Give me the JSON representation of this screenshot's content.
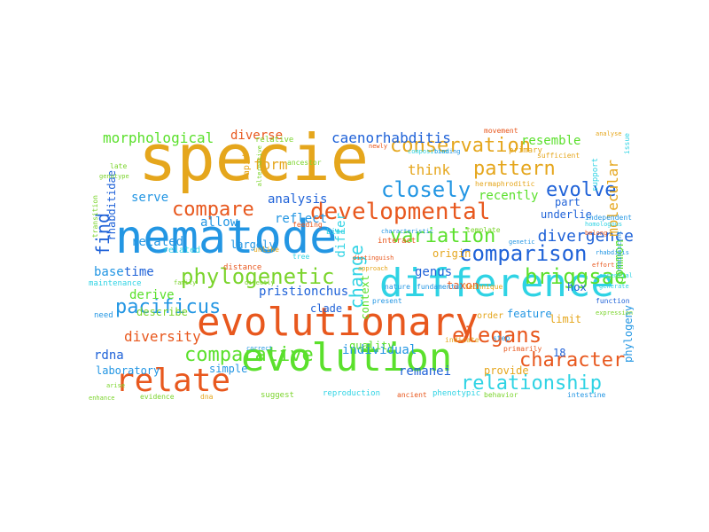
{
  "words": [
    {
      "text": "specie",
      "color": "#E5A61C"
    },
    {
      "text": "nematode",
      "color": "#2396E3"
    },
    {
      "text": "evolutionary",
      "color": "#E8581E"
    },
    {
      "text": "difference",
      "color": "#2FD3E4"
    },
    {
      "text": "evolution",
      "color": "#5BE02C"
    },
    {
      "text": "relate",
      "color": "#E8581E"
    },
    {
      "text": "developmental",
      "color": "#E8581E"
    },
    {
      "text": "comparison",
      "color": "#1F62D8"
    },
    {
      "text": "conservation",
      "color": "#E5A61C"
    },
    {
      "text": "closely",
      "color": "#2396E3"
    },
    {
      "text": "phylogenetic",
      "color": "#7BD42C"
    },
    {
      "text": "pacificus",
      "color": "#2396E3"
    },
    {
      "text": "variation",
      "color": "#5BE02C"
    },
    {
      "text": "briggsae",
      "color": "#5BE02C"
    },
    {
      "text": "relationship",
      "color": "#2FD3E4"
    },
    {
      "text": "elegans",
      "color": "#E8581E"
    },
    {
      "text": "comparative",
      "color": "#5BE02C"
    },
    {
      "text": "pattern",
      "color": "#E5A61C"
    },
    {
      "text": "compare",
      "color": "#E8581E"
    },
    {
      "text": "evolve",
      "color": "#1F62D8"
    },
    {
      "text": "find",
      "color": "#1F62D8"
    },
    {
      "text": "character",
      "color": "#E8581E"
    },
    {
      "text": "change",
      "color": "#2FD3E4"
    },
    {
      "text": "morphological",
      "color": "#5BE02C"
    },
    {
      "text": "caenorhabditis",
      "color": "#1F62D8"
    },
    {
      "text": "divergence",
      "color": "#1F62D8"
    },
    {
      "text": "think",
      "color": "#E5A61C"
    },
    {
      "text": "diversity",
      "color": "#E8581E"
    },
    {
      "text": "molecular",
      "color": "#E5A61C"
    },
    {
      "text": "form",
      "color": "#E5A61C"
    },
    {
      "text": "diverse",
      "color": "#E8581E"
    },
    {
      "text": "analysis",
      "color": "#1F62D8"
    },
    {
      "text": "recently",
      "color": "#5BE02C"
    },
    {
      "text": "resemble",
      "color": "#5BE02C"
    },
    {
      "text": "pristionchus",
      "color": "#1F62D8"
    },
    {
      "text": "individual",
      "color": "#2396E3"
    },
    {
      "text": "remanei",
      "color": "#1F62D8"
    },
    {
      "text": "genus",
      "color": "#1F62D8"
    },
    {
      "text": "common",
      "color": "#5BE02C"
    },
    {
      "text": "rdna",
      "color": "#1F62D8"
    },
    {
      "text": "serve",
      "color": "#2396E3"
    },
    {
      "text": "allow",
      "color": "#2396E3"
    },
    {
      "text": "reflect",
      "color": "#2396E3"
    },
    {
      "text": "related",
      "color": "#2396E3"
    },
    {
      "text": "derive",
      "color": "#5BE02C"
    },
    {
      "text": "base",
      "color": "#2396E3"
    },
    {
      "text": "time",
      "color": "#1F62D8"
    },
    {
      "text": "describe",
      "color": "#7BD42C"
    },
    {
      "text": "laboratory",
      "color": "#2396E3"
    },
    {
      "text": "simple",
      "color": "#2396E3"
    },
    {
      "text": "largely",
      "color": "#2396E3"
    },
    {
      "text": "origin",
      "color": "#E5A61C"
    },
    {
      "text": "context",
      "color": "#5BE02C"
    },
    {
      "text": "quality",
      "color": "#5BE02C"
    },
    {
      "text": "taxon",
      "color": "#E8581E"
    },
    {
      "text": "provide",
      "color": "#E5A61C"
    },
    {
      "text": "limit",
      "color": "#E5A61C"
    },
    {
      "text": "feature",
      "color": "#2396E3"
    },
    {
      "text": "hox",
      "color": "#1F62D8"
    },
    {
      "text": "part",
      "color": "#1F62D8"
    },
    {
      "text": "underlie",
      "color": "#1F62D8"
    },
    {
      "text": "phylogeny",
      "color": "#2396E3"
    },
    {
      "text": "18",
      "color": "#1F62D8"
    },
    {
      "text": "differ",
      "color": "#2FD3E4"
    },
    {
      "text": "rhabditidae",
      "color": "#1F62D8"
    },
    {
      "text": "clade",
      "color": "#1F62D8"
    },
    {
      "text": "order",
      "color": "#E5A61C"
    },
    {
      "text": "rapid",
      "color": "#E5A61C"
    },
    {
      "text": "related",
      "color": "#2FD3E4"
    },
    {
      "text": "relative",
      "color": "#7BD42C"
    },
    {
      "text": "distance",
      "color": "#E8581E"
    },
    {
      "text": "evolutionary",
      "color": "#E8581E"
    },
    {
      "text": "maintenance",
      "color": "#2FD3E4"
    },
    {
      "text": "need",
      "color": "#2396E3"
    },
    {
      "text": "late",
      "color": "#7BD42C"
    },
    {
      "text": "genotype",
      "color": "#7BD42C"
    },
    {
      "text": "transition",
      "color": "#7BD42C"
    },
    {
      "text": "primary",
      "color": "#E5A61C"
    },
    {
      "text": "movement",
      "color": "#E8581E"
    },
    {
      "text": "sufficient",
      "color": "#E5A61C"
    },
    {
      "text": "support",
      "color": "#2FD3E4"
    },
    {
      "text": "issue",
      "color": "#2FD3E4"
    },
    {
      "text": "ancestor",
      "color": "#7BD42C"
    },
    {
      "text": "feeding",
      "color": "#E8581E"
    },
    {
      "text": "unlike",
      "color": "#E5A61C"
    },
    {
      "text": "tree",
      "color": "#2FD3E4"
    },
    {
      "text": "bind",
      "color": "#2FD3E4"
    },
    {
      "text": "interact",
      "color": "#E8581E"
    },
    {
      "text": "template",
      "color": "#7BD42C"
    },
    {
      "text": "independent",
      "color": "#2396E3"
    },
    {
      "text": "hermaphroditic",
      "color": "#E5A61C"
    },
    {
      "text": "reproduction",
      "color": "#2FD3E4"
    },
    {
      "text": "phenotypic",
      "color": "#2FD3E4"
    },
    {
      "text": "suggest",
      "color": "#7BD42C"
    },
    {
      "text": "evidence",
      "color": "#7BD42C"
    },
    {
      "text": "dna",
      "color": "#E5A61C"
    },
    {
      "text": "ancient",
      "color": "#E8581E"
    },
    {
      "text": "behavior",
      "color": "#7BD42C"
    },
    {
      "text": "intestine",
      "color": "#2396E3"
    },
    {
      "text": "indicate",
      "color": "#E5A61C"
    },
    {
      "text": "nature",
      "color": "#2396E3"
    },
    {
      "text": "fundamental",
      "color": "#2396E3"
    },
    {
      "text": "technique",
      "color": "#E5A61C"
    },
    {
      "text": "step",
      "color": "#2396E3"
    },
    {
      "text": "function",
      "color": "#1F62D8"
    },
    {
      "text": "expression",
      "color": "#7BD42C"
    },
    {
      "text": "primarily",
      "color": "#E8581E"
    },
    {
      "text": "enhance",
      "color": "#7BD42C"
    },
    {
      "text": "correct",
      "color": "#2396E3"
    },
    {
      "text": "family",
      "color": "#7BD42C"
    },
    {
      "text": "directly",
      "color": "#7BD42C"
    },
    {
      "text": "present",
      "color": "#2396E3"
    },
    {
      "text": "distinguish",
      "color": "#E8581E"
    },
    {
      "text": "characteristic",
      "color": "#2396E3"
    },
    {
      "text": "composition",
      "color": "#2FD3E4"
    },
    {
      "text": "newly",
      "color": "#E8581E"
    },
    {
      "text": "binding",
      "color": "#2396E3"
    },
    {
      "text": "belong",
      "color": "#E8581E"
    },
    {
      "text": "rhabditis",
      "color": "#2396E3"
    },
    {
      "text": "effort",
      "color": "#E8581E"
    },
    {
      "text": "approach",
      "color": "#E5A61C"
    },
    {
      "text": "arise",
      "color": "#7BD42C"
    },
    {
      "text": "essential",
      "color": "#2FD3E4"
    },
    {
      "text": "generate",
      "color": "#2FD3E4"
    },
    {
      "text": "genetic",
      "color": "#2396E3"
    },
    {
      "text": "homologous",
      "color": "#2FD3E4"
    },
    {
      "text": "alternative",
      "color": "#7BD42C"
    },
    {
      "text": "reminiscent",
      "color": "#2396E3"
    },
    {
      "text": "analyse",
      "color": "#E5A61C"
    }
  ]
}
